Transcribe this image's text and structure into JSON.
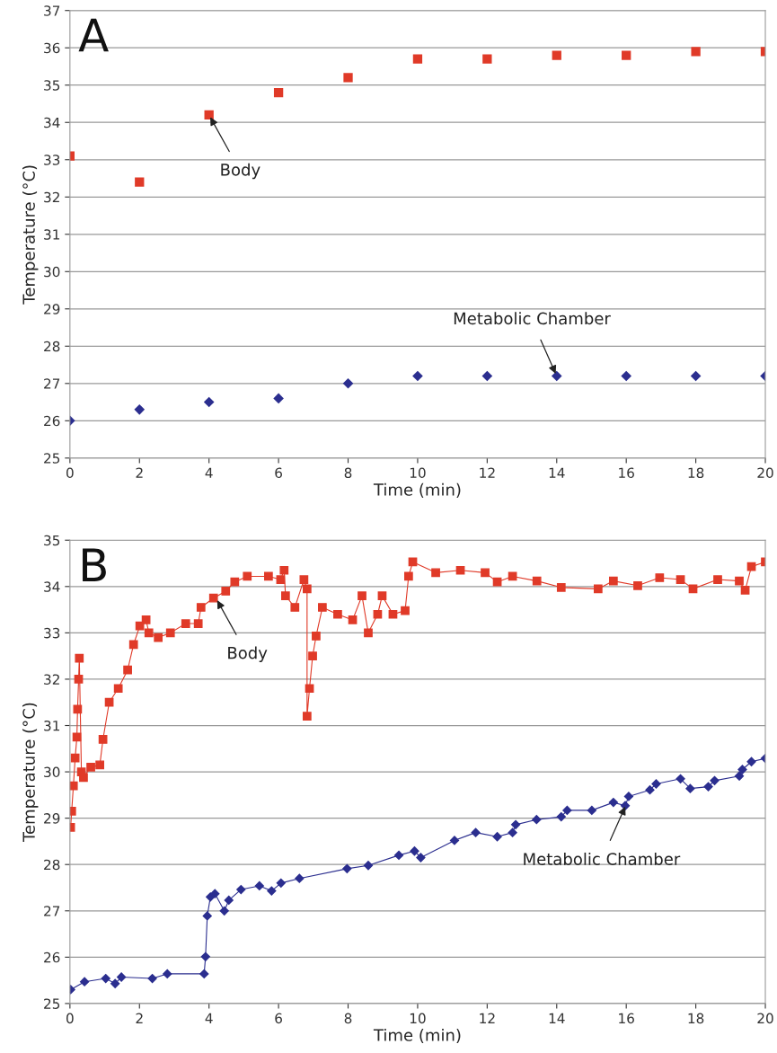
{
  "chart_data": [
    {
      "type": "scatter",
      "xlabel": "Time (min)",
      "ylabel": "Temperature (°C)",
      "xlim": [
        0,
        20
      ],
      "ylim": [
        25,
        37
      ],
      "xticks": [
        0,
        2,
        4,
        6,
        8,
        10,
        12,
        14,
        16,
        18,
        20
      ],
      "yticks": [
        25,
        26,
        27,
        28,
        29,
        30,
        31,
        32,
        33,
        34,
        35,
        36,
        37
      ],
      "grid": "y",
      "x": [
        0,
        2,
        4,
        6,
        8,
        10,
        12,
        14,
        16,
        18,
        20
      ],
      "series": [
        {
          "color": "#e03a28",
          "marker": "square",
          "values": [
            33.1,
            32.4,
            34.2,
            34.8,
            35.2,
            35.7,
            35.7,
            35.8,
            35.8,
            35.9,
            35.9
          ]
        },
        {
          "color": "#2b2e8f",
          "marker": "diamond",
          "values": [
            26.0,
            26.3,
            26.5,
            26.6,
            27.0,
            27.2,
            27.2,
            27.2,
            27.2,
            27.2,
            27.2
          ]
        }
      ],
      "annotations": [
        "A",
        {
          "text": "Body",
          "x": 4,
          "y": 34.2
        },
        {
          "text": "Metabolic Chamber",
          "x": 14,
          "y": 27.2
        }
      ]
    },
    {
      "type": "line",
      "xlabel": "Time (min)",
      "ylabel": "Temperature (°C)",
      "xlim": [
        0,
        20
      ],
      "ylim": [
        25,
        35
      ],
      "xticks": [
        0,
        2,
        4,
        6,
        8,
        10,
        12,
        14,
        16,
        18,
        20
      ],
      "yticks": [
        25,
        26,
        27,
        28,
        29,
        30,
        31,
        32,
        33,
        34,
        35
      ],
      "grid": "y",
      "series": [
        {
          "color": "#e03a28",
          "marker": "square",
          "x": [
            0.02,
            0.05,
            0.1,
            0.15,
            0.2,
            0.22,
            0.25,
            0.27,
            0.33,
            0.39,
            0.6,
            0.86,
            0.95,
            1.13,
            1.39,
            1.66,
            1.83,
            2.01,
            2.19,
            2.27,
            2.54,
            2.89,
            3.33,
            3.69,
            3.77,
            4.13,
            4.48,
            4.74,
            5.1,
            5.71,
            6.06,
            6.16,
            6.2,
            6.47,
            6.73,
            6.82,
            6.82,
            6.89,
            6.98,
            7.08,
            7.26,
            7.7,
            8.13,
            8.4,
            8.58,
            8.85,
            8.98,
            9.29,
            9.64,
            9.74,
            9.86,
            10.52,
            11.23,
            11.94,
            12.29,
            12.73,
            13.43,
            14.13,
            15.19,
            15.63,
            16.33,
            16.96,
            17.56,
            17.92,
            18.63,
            19.25,
            19.42,
            19.6,
            20.0
          ],
          "values": [
            28.8,
            29.15,
            29.7,
            30.3,
            30.75,
            31.35,
            32.0,
            32.45,
            30.0,
            29.88,
            30.1,
            30.15,
            30.7,
            31.5,
            31.8,
            32.2,
            32.75,
            33.15,
            33.28,
            33.0,
            32.9,
            33.0,
            33.2,
            33.2,
            33.55,
            33.75,
            33.9,
            34.1,
            34.22,
            34.22,
            34.15,
            34.35,
            33.8,
            33.55,
            34.15,
            33.95,
            31.2,
            31.8,
            32.5,
            32.93,
            33.55,
            33.4,
            33.28,
            33.8,
            33.0,
            33.4,
            33.8,
            33.4,
            33.48,
            34.22,
            34.53,
            34.3,
            34.35,
            34.3,
            34.1,
            34.22,
            34.12,
            33.98,
            33.95,
            34.12,
            34.02,
            34.19,
            34.15,
            33.95,
            34.15,
            34.12,
            33.92,
            34.43,
            34.53
          ]
        },
        {
          "color": "#2b2e8f",
          "marker": "diamond",
          "x": [
            0.02,
            0.42,
            1.03,
            1.3,
            1.48,
            2.37,
            2.8,
            3.86,
            3.9,
            3.95,
            4.04,
            4.17,
            4.44,
            4.57,
            4.92,
            5.45,
            5.8,
            6.07,
            6.6,
            7.97,
            8.58,
            9.46,
            9.91,
            10.09,
            11.06,
            11.67,
            12.29,
            12.73,
            12.82,
            13.42,
            14.13,
            14.3,
            15.01,
            15.63,
            15.97,
            16.07,
            16.68,
            16.86,
            17.56,
            17.84,
            18.36,
            18.54,
            19.25,
            19.34,
            19.6,
            20.0
          ],
          "values": [
            25.3,
            25.47,
            25.54,
            25.43,
            25.57,
            25.54,
            25.64,
            25.64,
            26.01,
            26.89,
            27.3,
            27.37,
            27.0,
            27.23,
            27.46,
            27.54,
            27.43,
            27.6,
            27.7,
            27.91,
            27.98,
            28.2,
            28.29,
            28.15,
            28.52,
            28.69,
            28.6,
            28.69,
            28.86,
            28.97,
            29.03,
            29.17,
            29.17,
            29.34,
            29.27,
            29.47,
            29.61,
            29.74,
            29.85,
            29.64,
            29.68,
            29.81,
            29.91,
            30.05,
            30.22,
            30.29
          ]
        }
      ],
      "annotations": [
        "B",
        {
          "text": "Body",
          "x": 4.2,
          "y": 33.75
        },
        {
          "text": "Metabolic Chamber",
          "x": 16,
          "y": 29.3
        }
      ]
    }
  ]
}
